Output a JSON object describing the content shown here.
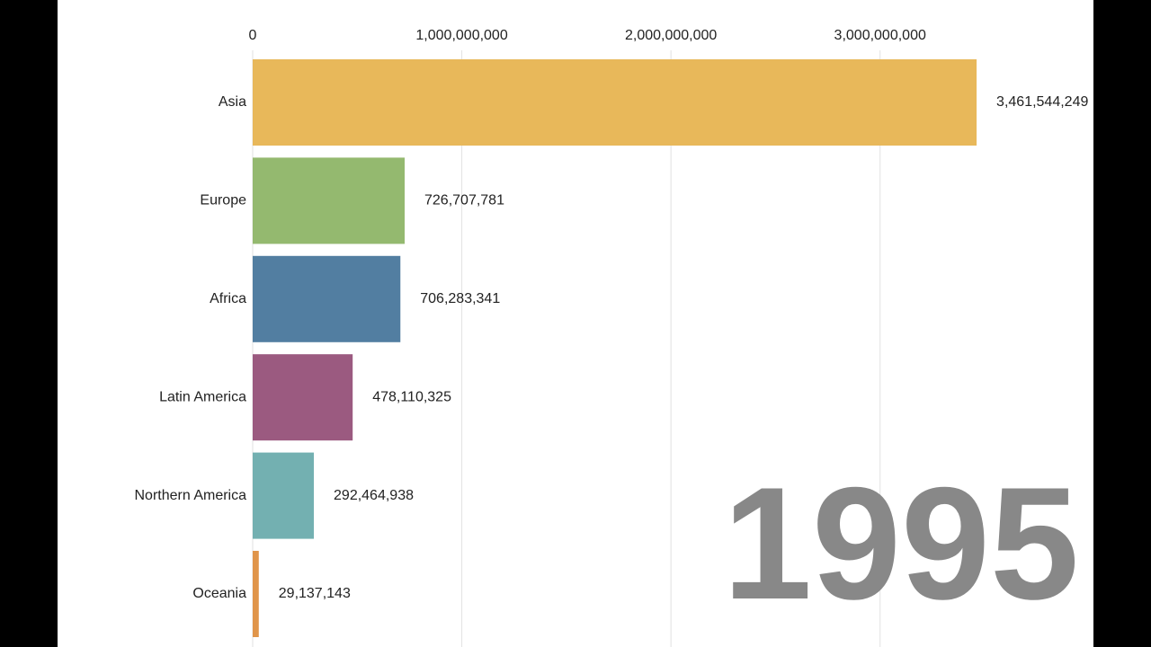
{
  "chart_data": {
    "type": "bar",
    "orientation": "horizontal",
    "categories": [
      "Asia",
      "Europe",
      "Africa",
      "Latin America",
      "Northern America",
      "Oceania"
    ],
    "values": [
      3461544249,
      726707781,
      706283341,
      478110325,
      292464938,
      29137143
    ],
    "value_labels": [
      "3,461,544,249",
      "726,707,781",
      "706,283,341",
      "478,110,325",
      "292,464,938",
      "29,137,143"
    ],
    "colors": [
      "#e8b85a",
      "#94b96f",
      "#527ea1",
      "#9b5a80",
      "#73b0b1",
      "#e0954a"
    ],
    "xlim": [
      0,
      3500000000
    ],
    "xticks": [
      0,
      {
        "value": 1000000000,
        "label": "1,000,000,000"
      },
      {
        "value": 2000000000,
        "label": "2,000,000,000"
      },
      {
        "value": 3000000000,
        "label": "3,000,000,000"
      }
    ],
    "grid": true,
    "annotation": "1995"
  }
}
